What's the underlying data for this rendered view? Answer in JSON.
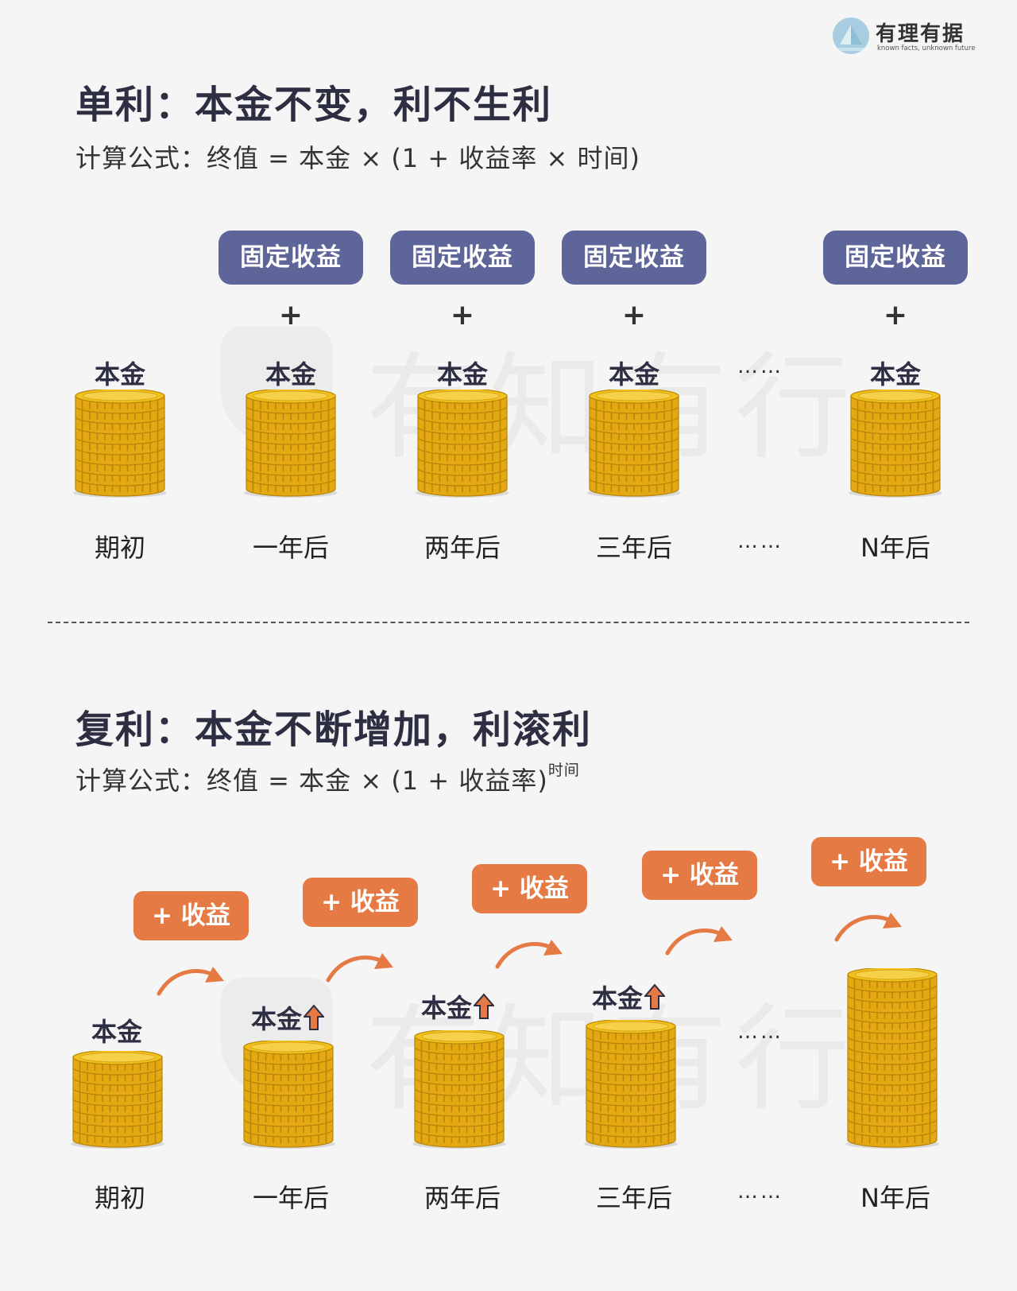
{
  "brand": {
    "name": "有理有据",
    "tagline": "known facts, unknown future"
  },
  "watermark": {
    "text": "有知有行"
  },
  "simple": {
    "title": "单利：本金不变，利不生利",
    "formula": "计算公式：终值 = 本金 × (1 + 收益率 × 时间)",
    "fixed_income_label": "固定收益",
    "plus_sign": "+",
    "principal_label": "本金",
    "ellipsis": "……",
    "periods": [
      "期初",
      "一年后",
      "两年后",
      "三年后",
      "N年后"
    ],
    "stack_levels": [
      9,
      9,
      9,
      9,
      9
    ]
  },
  "compound": {
    "title": "复利：本金不断增加，利滚利",
    "formula": "计算公式：终值 = 本金 × (1 + 收益率)",
    "formula_exponent": "时间",
    "gain_label": "+ 收益",
    "principal_label": "本金",
    "ellipsis": "……",
    "periods": [
      "期初",
      "一年后",
      "两年后",
      "三年后",
      "N年后"
    ],
    "stack_levels": [
      8,
      9,
      10,
      11,
      16
    ]
  },
  "colors": {
    "fixed_income_pill": "#5e6599",
    "gain_pill": "#e57a45",
    "up_arrow": "#e57a45",
    "coin_face": "#f2c21c",
    "coin_edge": "#e3a812",
    "coin_rim": "#b9860a"
  },
  "icons": {
    "up_arrow": "up-arrow-icon",
    "curved_arrow": "curved-arrow-icon",
    "coin_stack": "coin-stack-icon",
    "logo": "pyramid-logo-icon"
  }
}
